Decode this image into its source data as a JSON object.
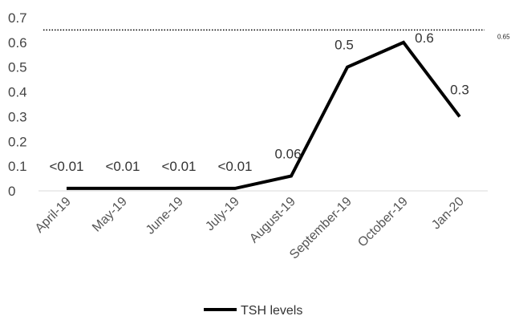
{
  "chart_data": {
    "type": "line",
    "categories": [
      "April-19",
      "May-19",
      "June-19",
      "July-19",
      "August-19",
      "September-19",
      "October-19",
      "Jan-20"
    ],
    "series": [
      {
        "name": "TSH levels",
        "values": [
          0.01,
          0.01,
          0.01,
          0.01,
          0.06,
          0.5,
          0.6,
          0.3
        ],
        "data_labels": [
          "<0.01",
          "<0.01",
          "<0.01",
          "<0.01",
          "0.06",
          "0.5",
          "0.6",
          "0.3"
        ],
        "color": "#000000"
      }
    ],
    "y_ticks": [
      "0",
      "0.1",
      "0.2",
      "0.3",
      "0.4",
      "0.5",
      "0.6",
      "0.7"
    ],
    "ylim": [
      0,
      0.7
    ],
    "reference_line": {
      "value": 0.65,
      "label": "0.65",
      "style": "dotted"
    },
    "title": "",
    "xlabel": "",
    "ylabel": "",
    "grid": false,
    "legend_position": "bottom"
  }
}
